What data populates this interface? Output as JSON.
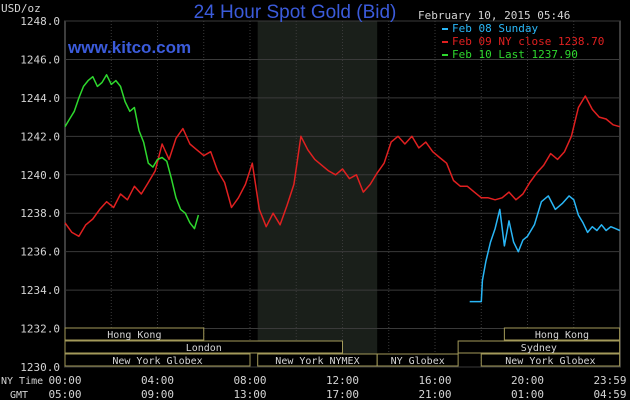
{
  "chart_data": {
    "type": "line",
    "title": "24 Hour Spot Gold (Bid)",
    "watermark": "www.kitco.com",
    "timestamp": "February 10, 2015 05:46",
    "y_axis_label": "USD/oz",
    "ylim": [
      1230,
      1248
    ],
    "y_ticks": [
      "1248.0",
      "1246.0",
      "1244.0",
      "1242.0",
      "1240.0",
      "1238.0",
      "1236.0",
      "1234.0",
      "1232.0",
      "1230.0"
    ],
    "time_row_labels": [
      "NY Time",
      "GMT"
    ],
    "x_ticks_ny": [
      "00:00",
      "04:00",
      "08:00",
      "12:00",
      "16:00",
      "20:00",
      "23:59"
    ],
    "x_ticks_gmt": [
      "05:00",
      "09:00",
      "13:00",
      "17:00",
      "21:00",
      "01:00",
      "04:59"
    ],
    "colors": {
      "background": "#000000",
      "plot_bg": "#000000",
      "grid": "#3a3a3a",
      "shade": "#1a1f1a",
      "title": "#3b5bdb",
      "watermark": "#3b5bdb",
      "text": "#d4d4d4",
      "session_bg": "#000000",
      "session_border": "#a39a5a",
      "axis": "#7a7a7a"
    },
    "legend": [
      {
        "label": "Feb 08 Sunday",
        "color": "#29b6f6"
      },
      {
        "label": "Feb 09 NY close 1238.70",
        "color": "#e02020"
      },
      {
        "label": "Feb 10 Last 1237.90",
        "color": "#2ed82e"
      }
    ],
    "sessions": [
      {
        "label": "Hong Kong",
        "row": 0,
        "start": "00:00",
        "end": "06:00"
      },
      {
        "label": "London",
        "row": 1,
        "start": "00:00",
        "end": "12:00"
      },
      {
        "label": "New York Globex",
        "row": 2,
        "start": "00:00",
        "end": "08:00"
      },
      {
        "label": "New York NYMEX",
        "row": 2,
        "start": "08:20",
        "end": "13:30"
      },
      {
        "label": "NY Globex",
        "row": 2,
        "start": "13:30",
        "end": "17:00"
      },
      {
        "label": "Hong Kong",
        "row": 0,
        "start": "19:00",
        "end": "23:59"
      },
      {
        "label": "Sydney",
        "row": 1,
        "start": "17:00",
        "end": "23:59"
      },
      {
        "label": "New York Globex",
        "row": 2,
        "start": "18:00",
        "end": "23:59"
      }
    ],
    "series": [
      {
        "name": "Feb 08 Sunday",
        "color": "#29b6f6",
        "x": [
          17.5,
          18.0,
          18.05,
          18.2,
          18.4,
          18.6,
          18.8,
          19.0,
          19.2,
          19.4,
          19.6,
          19.8,
          20.0,
          20.3,
          20.6,
          20.9,
          21.2,
          21.5,
          21.8,
          22.0,
          22.2,
          22.4,
          22.6,
          22.8,
          23.0,
          23.2,
          23.4,
          23.6,
          23.8,
          23.99
        ],
        "y": [
          1233.4,
          1233.4,
          1234.5,
          1235.5,
          1236.5,
          1237.2,
          1238.2,
          1236.3,
          1237.6,
          1236.5,
          1236.0,
          1236.6,
          1236.8,
          1237.4,
          1238.6,
          1238.9,
          1238.2,
          1238.5,
          1238.9,
          1238.7,
          1237.9,
          1237.5,
          1237.0,
          1237.3,
          1237.1,
          1237.4,
          1237.1,
          1237.3,
          1237.2,
          1237.1
        ]
      },
      {
        "name": "Feb 09 NY close 1238.70",
        "color": "#e02020",
        "x": [
          0.0,
          0.3,
          0.6,
          0.9,
          1.2,
          1.5,
          1.8,
          2.1,
          2.4,
          2.7,
          3.0,
          3.3,
          3.6,
          3.9,
          4.2,
          4.5,
          4.8,
          5.1,
          5.4,
          5.7,
          6.0,
          6.3,
          6.6,
          6.9,
          7.2,
          7.5,
          7.8,
          8.1,
          8.4,
          8.7,
          9.0,
          9.3,
          9.6,
          9.9,
          10.2,
          10.5,
          10.8,
          11.1,
          11.4,
          11.7,
          12.0,
          12.3,
          12.6,
          12.9,
          13.2,
          13.5,
          13.8,
          14.1,
          14.4,
          14.7,
          15.0,
          15.3,
          15.6,
          15.9,
          16.2,
          16.5,
          16.8,
          17.1,
          17.4,
          17.7,
          18.0,
          18.3,
          18.6,
          18.9,
          19.2,
          19.5,
          19.8,
          20.1,
          20.4,
          20.7,
          21.0,
          21.3,
          21.6,
          21.9,
          22.2,
          22.5,
          22.8,
          23.1,
          23.4,
          23.7,
          23.99
        ],
        "y": [
          1237.5,
          1237.0,
          1236.8,
          1237.4,
          1237.7,
          1238.2,
          1238.6,
          1238.3,
          1239.0,
          1238.7,
          1239.4,
          1239.0,
          1239.6,
          1240.2,
          1241.6,
          1240.8,
          1241.9,
          1242.4,
          1241.6,
          1241.3,
          1241.0,
          1241.2,
          1240.2,
          1239.6,
          1238.3,
          1238.8,
          1239.5,
          1240.6,
          1238.2,
          1237.3,
          1238.0,
          1237.4,
          1238.4,
          1239.5,
          1242.0,
          1241.3,
          1240.8,
          1240.5,
          1240.2,
          1240.0,
          1240.3,
          1239.8,
          1240.0,
          1239.1,
          1239.5,
          1240.1,
          1240.6,
          1241.7,
          1242.0,
          1241.6,
          1242.0,
          1241.4,
          1241.7,
          1241.2,
          1240.9,
          1240.6,
          1239.7,
          1239.4,
          1239.4,
          1239.1,
          1238.8,
          1238.8,
          1238.7,
          1238.8,
          1239.1,
          1238.7,
          1239.0,
          1239.6,
          1240.1,
          1240.5,
          1241.1,
          1240.8,
          1241.2,
          1242.0,
          1243.5,
          1244.1,
          1243.4,
          1243.0,
          1242.9,
          1242.6,
          1242.5
        ]
      },
      {
        "name": "Feb 10 Last 1237.90",
        "color": "#2ed82e",
        "x": [
          0.0,
          0.2,
          0.4,
          0.6,
          0.8,
          1.0,
          1.2,
          1.4,
          1.6,
          1.8,
          2.0,
          2.2,
          2.4,
          2.6,
          2.8,
          3.0,
          3.2,
          3.4,
          3.6,
          3.8,
          4.0,
          4.2,
          4.4,
          4.6,
          4.8,
          5.0,
          5.2,
          5.4,
          5.6,
          5.77
        ],
        "y": [
          1242.5,
          1242.9,
          1243.3,
          1244.0,
          1244.6,
          1244.9,
          1245.1,
          1244.6,
          1244.8,
          1245.2,
          1244.7,
          1244.9,
          1244.6,
          1243.8,
          1243.3,
          1243.5,
          1242.3,
          1241.7,
          1240.6,
          1240.4,
          1240.8,
          1240.9,
          1240.7,
          1239.8,
          1238.8,
          1238.2,
          1238.0,
          1237.5,
          1237.2,
          1237.9
        ]
      }
    ]
  }
}
